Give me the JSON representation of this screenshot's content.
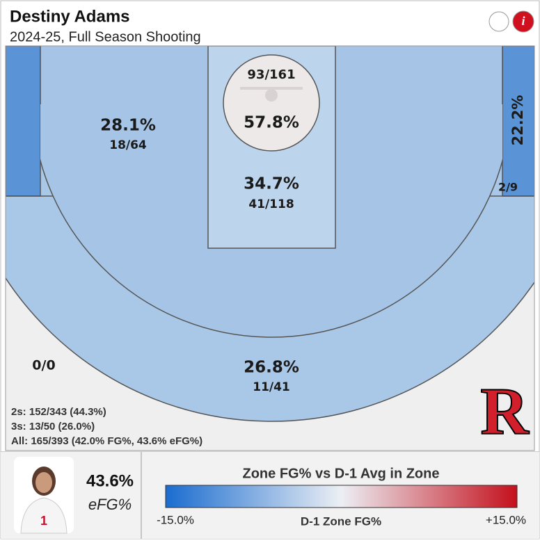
{
  "header": {
    "title": "Destiny Adams",
    "subtitle": "2024-25, Full Season Shooting"
  },
  "zones": {
    "restricted": {
      "pct": "57.8%",
      "made": "93/161"
    },
    "paint": {
      "pct": "34.7%",
      "made": "41/118"
    },
    "midrange": {
      "pct": "28.1%",
      "made": "18/64"
    },
    "right_corner": {
      "pct": "22.2%",
      "made": "2/9"
    },
    "above_break": {
      "pct": "26.8%",
      "made": "11/41"
    },
    "long": {
      "made": "0/0"
    }
  },
  "summary": [
    "2s: 152/343 (44.3%)",
    "3s: 13/50 (26.0%)",
    "All: 165/393 (42.0% FG%, 43.6% eFG%)"
  ],
  "logo": "R",
  "player": {
    "efg_value": "43.6%",
    "efg_label": "eFG%"
  },
  "legend": {
    "title": "Zone FG% vs D-1 Avg in Zone",
    "low": "-15.0%",
    "axis": "D-1 Zone FG%",
    "high": "+15.0%"
  }
}
